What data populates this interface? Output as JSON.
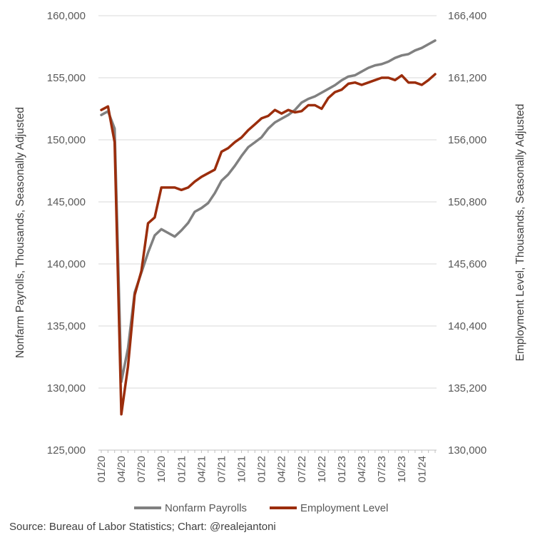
{
  "chart_data": {
    "type": "line",
    "x": [
      "01/20",
      "02/20",
      "03/20",
      "04/20",
      "05/20",
      "06/20",
      "07/20",
      "08/20",
      "09/20",
      "10/20",
      "11/20",
      "12/20",
      "01/21",
      "02/21",
      "03/21",
      "04/21",
      "05/21",
      "06/21",
      "07/21",
      "08/21",
      "09/21",
      "10/21",
      "11/21",
      "12/21",
      "01/22",
      "02/22",
      "03/22",
      "04/22",
      "05/22",
      "06/22",
      "07/22",
      "08/22",
      "09/22",
      "10/22",
      "11/22",
      "12/22",
      "01/23",
      "02/23",
      "03/23",
      "04/23",
      "05/23",
      "06/23",
      "07/23",
      "08/23",
      "09/23",
      "10/23",
      "11/23",
      "12/23",
      "01/24",
      "02/24",
      "03/24"
    ],
    "x_tick_labels": [
      "01/20",
      "04/20",
      "07/20",
      "10/20",
      "01/21",
      "04/21",
      "07/21",
      "10/21",
      "01/22",
      "04/22",
      "07/22",
      "10/22",
      "01/23",
      "04/23",
      "07/23",
      "10/23",
      "01/24"
    ],
    "series": [
      {
        "name": "Nonfarm Payrolls",
        "axis": "left",
        "color": "#808080",
        "values": [
          152000,
          152300,
          150900,
          130500,
          133200,
          137700,
          139300,
          140900,
          142300,
          142800,
          142500,
          142200,
          142700,
          143300,
          144200,
          144500,
          144900,
          145700,
          146700,
          147200,
          147900,
          148700,
          149400,
          149800,
          150200,
          150900,
          151400,
          151700,
          152000,
          152400,
          153000,
          153300,
          153500,
          153800,
          154100,
          154400,
          154800,
          155100,
          155200,
          155500,
          155800,
          156000,
          156100,
          156300,
          156600,
          156800,
          156900,
          157200,
          157400,
          157700,
          158000
        ]
      },
      {
        "name": "Employment Level",
        "axis": "right",
        "color": "#9b2d0c",
        "values": [
          158500,
          158800,
          155800,
          133000,
          137000,
          143000,
          145000,
          149000,
          149500,
          152000,
          152000,
          152000,
          151800,
          152000,
          152500,
          152900,
          153200,
          153500,
          155000,
          155300,
          155800,
          156200,
          156800,
          157300,
          157800,
          158000,
          158500,
          158200,
          158500,
          158300,
          158400,
          158900,
          158900,
          158600,
          159500,
          160000,
          160200,
          160700,
          160800,
          160600,
          160800,
          161000,
          161200,
          161200,
          161000,
          161400,
          160800,
          160800,
          160600,
          161000,
          161500
        ]
      }
    ],
    "y_left": {
      "label": "Nonfarm Payrolls, Thousands, Seasonally Adjusted",
      "ylim": [
        125000,
        160000
      ],
      "ticks": [
        "125,000",
        "130,000",
        "135,000",
        "140,000",
        "145,000",
        "150,000",
        "155,000",
        "160,000"
      ]
    },
    "y_right": {
      "label": "Employment Level, Thousands, Seasonally Adjusted",
      "ylim": [
        130000,
        166400
      ],
      "ticks": [
        "130,000",
        "135,200",
        "140,400",
        "145,600",
        "150,800",
        "156,000",
        "161,200",
        "166,400"
      ]
    },
    "grid": true,
    "legend": "bottom"
  },
  "source_note": "Source: Bureau of Labor Statistics; Chart: @realejantoni"
}
